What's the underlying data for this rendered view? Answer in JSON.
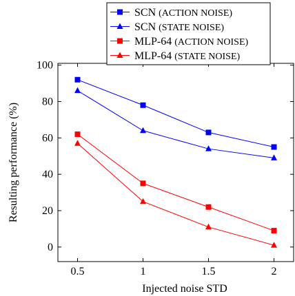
{
  "chart_data": {
    "type": "line",
    "x": [
      0.5,
      1,
      1.5,
      2
    ],
    "x_tick_labels": [
      "0.5",
      "1",
      "1.5",
      "2"
    ],
    "y_tick_labels": [
      "0",
      "20",
      "40",
      "60",
      "80",
      "100"
    ],
    "xlabel": "Injected noise STD",
    "ylabel": "Resulting performance (%)",
    "xlim": [
      0.35,
      2.15
    ],
    "ylim": [
      -8,
      101
    ],
    "grid": false,
    "legend_position": "top-center (overlapping plot frame)",
    "series": [
      {
        "name": "SCN",
        "name_suffix": "(ACTION NOISE)",
        "color": "#0000ff",
        "marker": "square",
        "values": [
          92,
          78,
          63,
          55
        ]
      },
      {
        "name": "SCN",
        "name_suffix": "(STATE NOISE)",
        "color": "#0000ff",
        "marker": "triangle",
        "values": [
          86,
          64,
          54,
          49
        ]
      },
      {
        "name": "MLP-64",
        "name_suffix": "(ACTION NOISE)",
        "color": "#ff0000",
        "marker": "square",
        "values": [
          62,
          35,
          22,
          9
        ]
      },
      {
        "name": "MLP-64",
        "name_suffix": "(STATE NOISE)",
        "color": "#ff0000",
        "marker": "triangle",
        "values": [
          57,
          25,
          11,
          1
        ]
      }
    ]
  }
}
